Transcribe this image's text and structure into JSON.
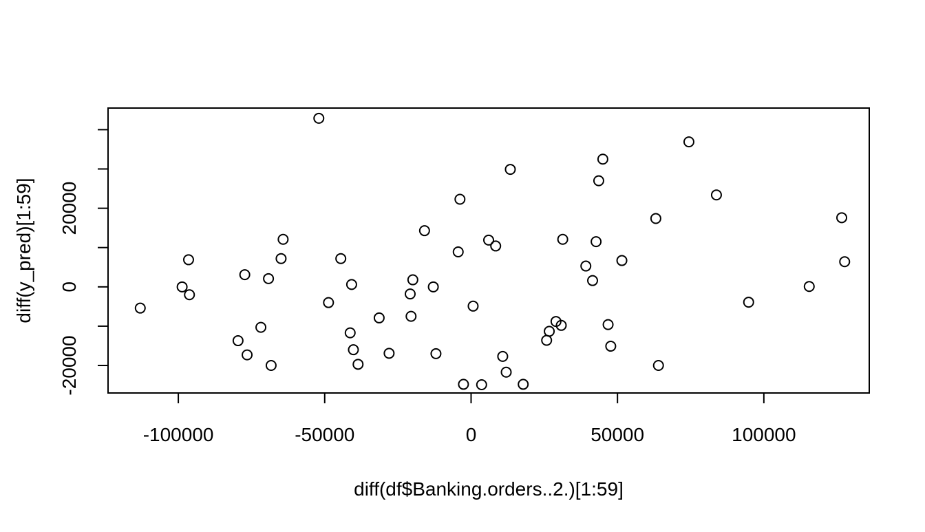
{
  "chart_data": {
    "type": "scatter",
    "title": "",
    "xlabel": "diff(df$Banking.orders..2.)[1:59]",
    "ylabel": "diff(y_pred)[1:59]",
    "xlim": [
      -124000,
      136000
    ],
    "ylim": [
      -27000,
      45500
    ],
    "x_ticks": [
      -100000,
      -50000,
      0,
      50000,
      100000
    ],
    "x_tick_labels": [
      "-100000",
      "-50000",
      "0",
      "50000",
      "100000"
    ],
    "y_ticks": [
      -20000,
      -10000,
      0,
      10000,
      20000,
      30000,
      40000
    ],
    "y_tick_labels": [
      "-20000",
      "",
      "0",
      "",
      "20000",
      "",
      ""
    ],
    "grid": false,
    "marker": "open-circle",
    "points": [
      {
        "x": -113000,
        "y": -5400
      },
      {
        "x": -98700,
        "y": 0
      },
      {
        "x": -96500,
        "y": 6900
      },
      {
        "x": -96200,
        "y": -2000
      },
      {
        "x": -79600,
        "y": -13700
      },
      {
        "x": -77300,
        "y": 3100
      },
      {
        "x": -76500,
        "y": -17300
      },
      {
        "x": -71800,
        "y": -10300
      },
      {
        "x": -69200,
        "y": 2100
      },
      {
        "x": -68300,
        "y": -20000
      },
      {
        "x": -64900,
        "y": 7200
      },
      {
        "x": -64200,
        "y": 12100
      },
      {
        "x": -52000,
        "y": 42900
      },
      {
        "x": -48700,
        "y": -4000
      },
      {
        "x": -44500,
        "y": 7200
      },
      {
        "x": -41300,
        "y": -11700
      },
      {
        "x": -40800,
        "y": 600
      },
      {
        "x": -40200,
        "y": -16000
      },
      {
        "x": -38600,
        "y": -19700
      },
      {
        "x": -31400,
        "y": -7900
      },
      {
        "x": -28000,
        "y": -16900
      },
      {
        "x": -20800,
        "y": -1800
      },
      {
        "x": -20500,
        "y": -7500
      },
      {
        "x": -19900,
        "y": 1800
      },
      {
        "x": -15900,
        "y": 14300
      },
      {
        "x": -12900,
        "y": 0
      },
      {
        "x": -12000,
        "y": -17000
      },
      {
        "x": -4400,
        "y": 8900
      },
      {
        "x": -3800,
        "y": 22300
      },
      {
        "x": -2600,
        "y": -24800
      },
      {
        "x": 700,
        "y": -4900
      },
      {
        "x": 3600,
        "y": -24900
      },
      {
        "x": 6000,
        "y": 11900
      },
      {
        "x": 8400,
        "y": 10400
      },
      {
        "x": 10800,
        "y": -17700
      },
      {
        "x": 12000,
        "y": -21700
      },
      {
        "x": 13400,
        "y": 29900
      },
      {
        "x": 17800,
        "y": -24800
      },
      {
        "x": 25800,
        "y": -13600
      },
      {
        "x": 26700,
        "y": -11300
      },
      {
        "x": 29000,
        "y": -8800
      },
      {
        "x": 30800,
        "y": -9800
      },
      {
        "x": 31300,
        "y": 12100
      },
      {
        "x": 39200,
        "y": 5300
      },
      {
        "x": 41500,
        "y": 1600
      },
      {
        "x": 42700,
        "y": 11500
      },
      {
        "x": 43600,
        "y": 27000
      },
      {
        "x": 45000,
        "y": 32500
      },
      {
        "x": 46800,
        "y": -9600
      },
      {
        "x": 47700,
        "y": -15100
      },
      {
        "x": 51500,
        "y": 6700
      },
      {
        "x": 63100,
        "y": 17400
      },
      {
        "x": 64000,
        "y": -20000
      },
      {
        "x": 74400,
        "y": 36900
      },
      {
        "x": 83800,
        "y": 23400
      },
      {
        "x": 94800,
        "y": -3900
      },
      {
        "x": 115500,
        "y": 100
      },
      {
        "x": 126600,
        "y": 17600
      },
      {
        "x": 127600,
        "y": 6400
      }
    ]
  }
}
